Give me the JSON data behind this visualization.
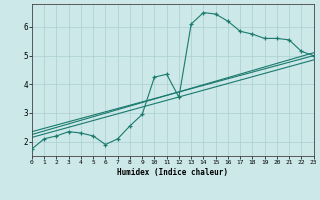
{
  "xlabel": "Humidex (Indice chaleur)",
  "background_color": "#cce8e8",
  "grid_color": "#aacfcf",
  "line_color": "#1a7a6e",
  "xlim": [
    0,
    23
  ],
  "ylim": [
    1.5,
    6.8
  ],
  "yticks": [
    2,
    3,
    4,
    5,
    6
  ],
  "xticks": [
    0,
    1,
    2,
    3,
    4,
    5,
    6,
    7,
    8,
    9,
    10,
    11,
    12,
    13,
    14,
    15,
    16,
    17,
    18,
    19,
    20,
    21,
    22,
    23
  ],
  "line1_x": [
    0,
    1,
    2,
    3,
    4,
    5,
    6,
    7,
    8,
    9,
    10,
    11,
    12,
    13,
    14,
    15,
    16,
    17,
    18,
    19,
    20,
    21,
    22,
    23
  ],
  "line1_y": [
    1.75,
    2.1,
    2.2,
    2.35,
    2.3,
    2.2,
    1.9,
    2.1,
    2.55,
    2.95,
    4.25,
    4.35,
    3.55,
    6.1,
    6.5,
    6.45,
    6.2,
    5.85,
    5.75,
    5.6,
    5.6,
    5.55,
    5.15,
    5.0
  ],
  "line2_x": [
    0,
    23
  ],
  "line2_y": [
    2.35,
    5.0
  ],
  "line3_x": [
    0,
    23
  ],
  "line3_y": [
    2.25,
    5.1
  ],
  "line4_x": [
    0,
    23
  ],
  "line4_y": [
    2.15,
    4.85
  ]
}
